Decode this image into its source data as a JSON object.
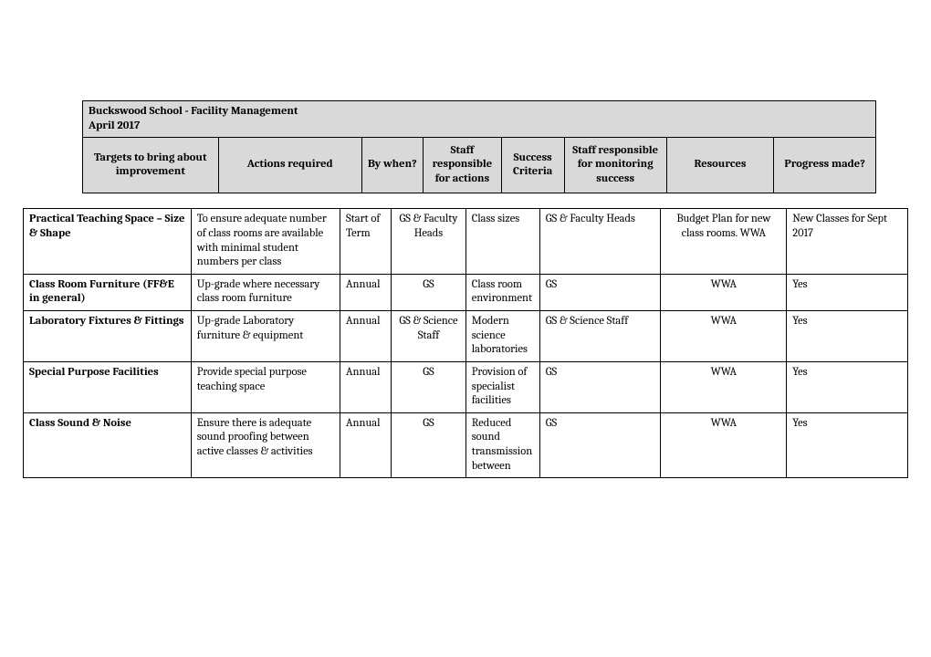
{
  "title_line1": "Buckswood School - Facility Management",
  "title_line2": "April 2017",
  "columns": {
    "c0": "Targets to bring about improvement",
    "c1": "Actions required",
    "c2": "By when?",
    "c3": "Staff responsible for actions",
    "c4": "Success Criteria",
    "c5": "Staff responsible for monitoring success",
    "c6": "Resources",
    "c7": "Progress made?"
  },
  "rows": [
    {
      "c0": "Practical Teaching Space – Size & Shape",
      "c1": "To ensure adequate number of class rooms are available with minimal student numbers per class",
      "c2": "Start of Term",
      "c3": "GS & Faculty Heads",
      "c4": "Class sizes",
      "c5": "GS & Faculty Heads",
      "c6": "Budget Plan for new class rooms. WWA",
      "c7": "New Classes for Sept 2017"
    },
    {
      "c0": "Class Room Furniture (FF&E in general)",
      "c1": "Up-grade where necessary class room furniture",
      "c2": "Annual",
      "c3": "GS",
      "c4": "Class room environment",
      "c5": "GS",
      "c6": "WWA",
      "c7": "Yes"
    },
    {
      "c0": "Laboratory Fixtures & Fittings",
      "c1": "Up-grade Laboratory furniture & equipment",
      "c2": "Annual",
      "c3": "GS & Science Staff",
      "c4": "Modern science laboratories",
      "c5": "GS & Science Staff",
      "c6": "WWA",
      "c7": "Yes"
    },
    {
      "c0": "Special Purpose Facilities",
      "c1": "Provide special purpose teaching space",
      "c2": "Annual",
      "c3": "GS",
      "c4": "Provision of specialist facilities",
      "c5": "GS",
      "c6": "WWA",
      "c7": "Yes"
    },
    {
      "c0": "Class Sound & Noise",
      "c1": "Ensure there is adequate sound proofing between active classes & activities",
      "c2": "Annual",
      "c3": "GS",
      "c4": "Reduced sound transmission between",
      "c5": "GS",
      "c6": "WWA",
      "c7": "Yes"
    }
  ],
  "layout": {
    "header_widths": [
      155,
      175,
      60,
      75,
      60,
      110,
      120,
      115
    ],
    "body_widths": [
      180,
      160,
      55,
      80,
      60,
      130,
      135,
      130
    ]
  }
}
